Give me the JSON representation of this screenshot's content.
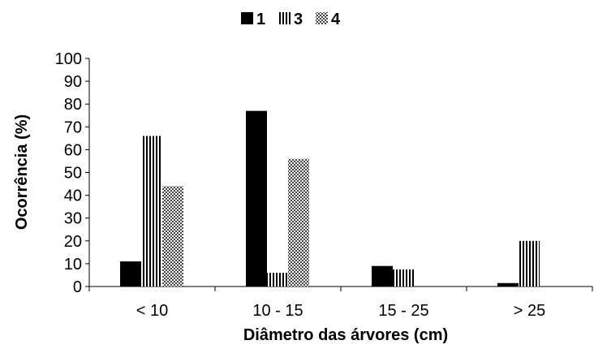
{
  "chart_data": {
    "type": "bar",
    "categories": [
      "< 10",
      "10 - 15",
      "15 - 25",
      "> 25"
    ],
    "series": [
      {
        "name": "1",
        "values": [
          11,
          77,
          9,
          1.5
        ],
        "color": "#000000",
        "pattern": "solid"
      },
      {
        "name": "3",
        "values": [
          66,
          6,
          7.5,
          20
        ],
        "color": "#000000",
        "pattern": "vertical-stripes"
      },
      {
        "name": "4",
        "values": [
          44,
          56,
          0,
          0
        ],
        "color": "#000000",
        "pattern": "checker"
      }
    ],
    "xlabel": "Diâmetro das árvores (cm)",
    "ylabel": "Ocorrência (%)",
    "ylim": [
      0,
      100
    ],
    "yticks": [
      "0",
      "10",
      "20",
      "30",
      "40",
      "50",
      "60",
      "70",
      "80",
      "90",
      "100"
    ],
    "grid": false,
    "legend_position": "top-center"
  }
}
